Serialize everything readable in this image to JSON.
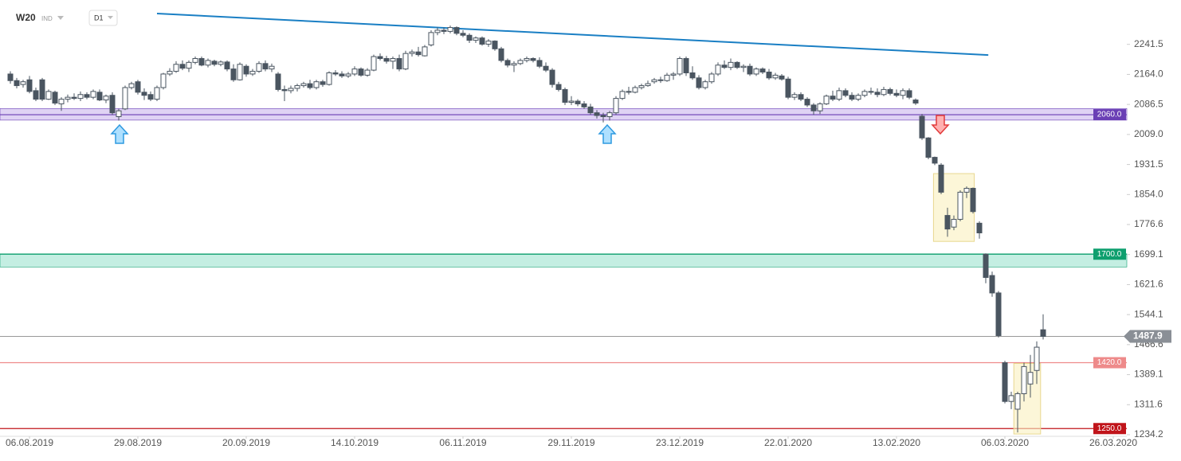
{
  "header": {
    "symbol": "W20",
    "kind": "IND",
    "timeframe": "D1"
  },
  "chart_data": {
    "type": "candlestick",
    "xlim": [
      -1.625,
      175.125
    ],
    "ylim": [
      1230,
      2356
    ],
    "xticks": [
      {
        "value": 3,
        "label": "06.08.2019"
      },
      {
        "value": 20,
        "label": "29.08.2019"
      },
      {
        "value": 37,
        "label": "20.09.2019"
      },
      {
        "value": 54,
        "label": "14.10.2019"
      },
      {
        "value": 71,
        "label": "06.11.2019"
      },
      {
        "value": 88,
        "label": "29.11.2019"
      },
      {
        "value": 105,
        "label": "23.12.2019"
      },
      {
        "value": 122,
        "label": "22.01.2020"
      },
      {
        "value": 139,
        "label": "13.02.2020"
      },
      {
        "value": 156,
        "label": "06.03.2020"
      },
      {
        "value": 173,
        "label": "26.03.2020"
      }
    ],
    "yticks": [
      2241.5,
      {
        "value": 2164,
        "label": "2164.0"
      },
      2086.5,
      {
        "value": 2009,
        "label": "2009.0"
      },
      1931.5,
      {
        "value": 1854,
        "label": "1854.0"
      },
      1776.6,
      1699.1,
      1621.6,
      1544.1,
      1466.6,
      1389.1,
      1311.6,
      1234.2
    ],
    "bull_color": "#ffffff",
    "bear_color": "#4a5560",
    "wick_color": "#4a5560",
    "candles": [
      [
        2165,
        2172,
        2140,
        2148
      ],
      [
        2148,
        2155,
        2128,
        2135
      ],
      [
        2138,
        2150,
        2130,
        2145
      ],
      [
        2150,
        2160,
        2115,
        2120
      ],
      [
        2122,
        2130,
        2095,
        2100
      ],
      [
        2150,
        2155,
        2095,
        2100
      ],
      [
        2100,
        2125,
        2098,
        2120
      ],
      [
        2118,
        2122,
        2085,
        2090
      ],
      [
        2088,
        2105,
        2070,
        2100
      ],
      [
        2100,
        2112,
        2092,
        2105
      ],
      [
        2105,
        2115,
        2098,
        2102
      ],
      [
        2102,
        2120,
        2095,
        2112
      ],
      [
        2112,
        2118,
        2100,
        2105
      ],
      [
        2105,
        2125,
        2100,
        2120
      ],
      [
        2118,
        2125,
        2095,
        2098
      ],
      [
        2098,
        2112,
        2090,
        2108
      ],
      [
        2110,
        2118,
        2060,
        2065
      ],
      [
        2055,
        2075,
        2045,
        2070
      ],
      [
        2075,
        2135,
        2072,
        2130
      ],
      [
        2130,
        2145,
        2125,
        2140
      ],
      [
        2145,
        2150,
        2112,
        2118
      ],
      [
        2118,
        2128,
        2098,
        2110
      ],
      [
        2112,
        2120,
        2095,
        2100
      ],
      [
        2100,
        2135,
        2095,
        2130
      ],
      [
        2130,
        2168,
        2125,
        2165
      ],
      [
        2165,
        2180,
        2160,
        2172
      ],
      [
        2172,
        2198,
        2168,
        2190
      ],
      [
        2190,
        2200,
        2175,
        2180
      ],
      [
        2180,
        2200,
        2170,
        2195
      ],
      [
        2195,
        2210,
        2190,
        2205
      ],
      [
        2205,
        2210,
        2185,
        2188
      ],
      [
        2188,
        2205,
        2182,
        2200
      ],
      [
        2198,
        2202,
        2185,
        2190
      ],
      [
        2190,
        2200,
        2185,
        2196
      ],
      [
        2196,
        2200,
        2172,
        2178
      ],
      [
        2178,
        2190,
        2145,
        2150
      ],
      [
        2150,
        2195,
        2148,
        2190
      ],
      [
        2185,
        2190,
        2158,
        2165
      ],
      [
        2165,
        2178,
        2160,
        2172
      ],
      [
        2172,
        2198,
        2168,
        2192
      ],
      [
        2192,
        2200,
        2172,
        2178
      ],
      [
        2178,
        2192,
        2170,
        2185
      ],
      [
        2165,
        2170,
        2120,
        2125
      ],
      [
        2125,
        2135,
        2095,
        2122
      ],
      [
        2122,
        2135,
        2115,
        2128
      ],
      [
        2128,
        2140,
        2120,
        2135
      ],
      [
        2135,
        2145,
        2130,
        2140
      ],
      [
        2140,
        2150,
        2125,
        2130
      ],
      [
        2130,
        2150,
        2125,
        2145
      ],
      [
        2145,
        2150,
        2132,
        2138
      ],
      [
        2138,
        2172,
        2135,
        2168
      ],
      [
        2168,
        2175,
        2160,
        2165
      ],
      [
        2165,
        2172,
        2155,
        2160
      ],
      [
        2160,
        2170,
        2155,
        2165
      ],
      [
        2165,
        2185,
        2160,
        2178
      ],
      [
        2178,
        2182,
        2158,
        2162
      ],
      [
        2162,
        2180,
        2158,
        2175
      ],
      [
        2175,
        2215,
        2172,
        2210
      ],
      [
        2210,
        2218,
        2200,
        2205
      ],
      [
        2205,
        2212,
        2192,
        2198
      ],
      [
        2198,
        2210,
        2178,
        2205
      ],
      [
        2205,
        2215,
        2172,
        2178
      ],
      [
        2178,
        2225,
        2175,
        2218
      ],
      [
        2218,
        2228,
        2210,
        2222
      ],
      [
        2222,
        2235,
        2210,
        2215
      ],
      [
        2212,
        2240,
        2210,
        2235
      ],
      [
        2240,
        2278,
        2236,
        2272
      ],
      [
        2272,
        2285,
        2265,
        2278
      ],
      [
        2278,
        2285,
        2268,
        2275
      ],
      [
        2275,
        2290,
        2270,
        2285
      ],
      [
        2285,
        2288,
        2265,
        2270
      ],
      [
        2270,
        2278,
        2260,
        2265
      ],
      [
        2265,
        2270,
        2245,
        2252
      ],
      [
        2252,
        2262,
        2245,
        2258
      ],
      [
        2258,
        2262,
        2238,
        2242
      ],
      [
        2242,
        2255,
        2235,
        2250
      ],
      [
        2250,
        2252,
        2225,
        2230
      ],
      [
        2230,
        2235,
        2195,
        2200
      ],
      [
        2200,
        2205,
        2182,
        2188
      ],
      [
        2188,
        2198,
        2170,
        2192
      ],
      [
        2192,
        2205,
        2188,
        2200
      ],
      [
        2200,
        2210,
        2195,
        2205
      ],
      [
        2205,
        2208,
        2195,
        2200
      ],
      [
        2200,
        2208,
        2180,
        2185
      ],
      [
        2185,
        2195,
        2170,
        2175
      ],
      [
        2175,
        2180,
        2130,
        2138
      ],
      [
        2138,
        2145,
        2120,
        2125
      ],
      [
        2125,
        2130,
        2085,
        2092
      ],
      [
        2092,
        2108,
        2085,
        2095
      ],
      [
        2095,
        2100,
        2082,
        2088
      ],
      [
        2088,
        2095,
        2075,
        2080
      ],
      [
        2080,
        2088,
        2060,
        2065
      ],
      [
        2065,
        2072,
        2050,
        2058
      ],
      [
        2058,
        2065,
        2040,
        2055
      ],
      [
        2055,
        2070,
        2045,
        2065
      ],
      [
        2065,
        2108,
        2060,
        2102
      ],
      [
        2102,
        2125,
        2098,
        2120
      ],
      [
        2120,
        2132,
        2112,
        2118
      ],
      [
        2118,
        2135,
        2115,
        2130
      ],
      [
        2130,
        2140,
        2125,
        2135
      ],
      [
        2135,
        2148,
        2132,
        2140
      ],
      [
        2145,
        2155,
        2140,
        2150
      ],
      [
        2150,
        2158,
        2142,
        2148
      ],
      [
        2148,
        2168,
        2145,
        2162
      ],
      [
        2162,
        2170,
        2150,
        2165
      ],
      [
        2165,
        2210,
        2160,
        2205
      ],
      [
        2205,
        2210,
        2160,
        2168
      ],
      [
        2168,
        2185,
        2150,
        2155
      ],
      [
        2155,
        2162,
        2125,
        2130
      ],
      [
        2130,
        2150,
        2125,
        2145
      ],
      [
        2145,
        2170,
        2140,
        2165
      ],
      [
        2165,
        2195,
        2160,
        2188
      ],
      [
        2188,
        2200,
        2178,
        2182
      ],
      [
        2182,
        2205,
        2175,
        2195
      ],
      [
        2195,
        2198,
        2178,
        2182
      ],
      [
        2182,
        2190,
        2170,
        2185
      ],
      [
        2185,
        2192,
        2160,
        2165
      ],
      [
        2165,
        2182,
        2160,
        2178
      ],
      [
        2178,
        2182,
        2165,
        2170
      ],
      [
        2170,
        2178,
        2150,
        2155
      ],
      [
        2155,
        2168,
        2150,
        2162
      ],
      [
        2160,
        2165,
        2148,
        2152
      ],
      [
        2152,
        2158,
        2100,
        2105
      ],
      [
        2105,
        2118,
        2098,
        2112
      ],
      [
        2112,
        2118,
        2095,
        2100
      ],
      [
        2100,
        2105,
        2080,
        2085
      ],
      [
        2085,
        2090,
        2060,
        2070
      ],
      [
        2070,
        2092,
        2062,
        2088
      ],
      [
        2088,
        2112,
        2085,
        2108
      ],
      [
        2108,
        2122,
        2095,
        2100
      ],
      [
        2100,
        2130,
        2095,
        2122
      ],
      [
        2122,
        2128,
        2105,
        2110
      ],
      [
        2110,
        2118,
        2095,
        2100
      ],
      [
        2100,
        2115,
        2095,
        2110
      ],
      [
        2110,
        2125,
        2105,
        2120
      ],
      [
        2120,
        2130,
        2112,
        2118
      ],
      [
        2118,
        2128,
        2105,
        2112
      ],
      [
        2112,
        2132,
        2108,
        2125
      ],
      [
        2125,
        2130,
        2110,
        2115
      ],
      [
        2115,
        2125,
        2105,
        2110
      ],
      [
        2110,
        2128,
        2100,
        2122
      ],
      [
        2122,
        2128,
        2100,
        2105
      ],
      [
        2098,
        2102,
        2085,
        2090
      ],
      [
        2056,
        2062,
        1995,
        2000
      ],
      [
        2000,
        2002,
        1945,
        1950
      ],
      [
        1950,
        1952,
        1930,
        1935
      ],
      [
        1930,
        1935,
        1855,
        1860
      ],
      [
        1800,
        1820,
        1745,
        1765
      ],
      [
        1770,
        1800,
        1762,
        1790
      ],
      [
        1790,
        1865,
        1785,
        1860
      ],
      [
        1860,
        1875,
        1845,
        1870
      ],
      [
        1870,
        1872,
        1805,
        1810
      ],
      [
        1780,
        1785,
        1740,
        1755
      ],
      [
        1700,
        1702,
        1625,
        1640
      ],
      [
        1645,
        1655,
        1590,
        1600
      ],
      [
        1600,
        1605,
        1485,
        1490
      ],
      [
        1420,
        1425,
        1315,
        1320
      ],
      [
        1320,
        1345,
        1300,
        1335
      ],
      [
        1300,
        1345,
        1240,
        1340
      ],
      [
        1340,
        1420,
        1320,
        1410
      ],
      [
        1365,
        1440,
        1330,
        1395
      ],
      [
        1400,
        1475,
        1365,
        1460
      ],
      [
        1505,
        1545,
        1480,
        1487.9
      ]
    ],
    "levels": [
      {
        "value": 2060,
        "label": "2060.0",
        "color": "#6a3fb5",
        "band": [
          2046,
          2076
        ],
        "band_color": "rgba(150,110,220,0.3)"
      },
      {
        "value": 1700,
        "label": "1700.0",
        "color": "#0e9f6e",
        "band": [
          1667,
          1701
        ],
        "band_color": "rgba(60,200,160,0.3)"
      },
      {
        "value": 1420,
        "label": "1420.0",
        "color": "#ee8a8a"
      },
      {
        "value": 1250,
        "label": "1250.0",
        "color": "#c0141a"
      }
    ],
    "last_price": 1487.9,
    "trendline": {
      "x": [
        23,
        153.4
      ],
      "y": [
        2321,
        2214
      ],
      "color": "#1a7fc4"
    },
    "zones": [
      {
        "x": [
          144.8,
          151.2
        ],
        "y": [
          1733,
          1908
        ]
      },
      {
        "x": [
          157.4,
          161.6
        ],
        "y": [
          1236,
          1418
        ]
      }
    ]
  }
}
